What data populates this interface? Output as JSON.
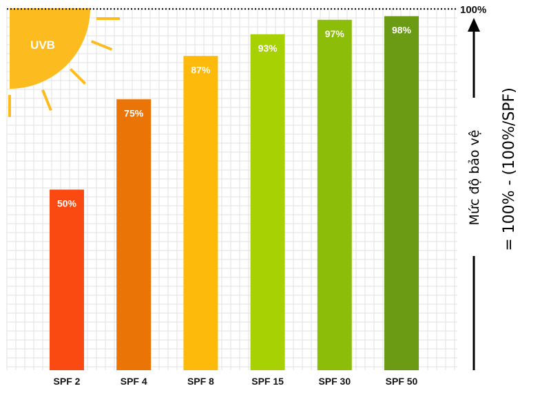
{
  "chart_data": {
    "type": "bar",
    "categories": [
      "SPF 2",
      "SPF 4",
      "SPF 8",
      "SPF 15",
      "SPF 30",
      "SPF 50"
    ],
    "values": [
      50,
      75,
      87,
      93,
      97,
      98
    ],
    "value_labels": [
      "50%",
      "75%",
      "87%",
      "93%",
      "97%",
      "98%"
    ],
    "bar_colors": [
      "#fb4a11",
      "#ea7506",
      "#fdba0b",
      "#a8d104",
      "#8cbd08",
      "#6b9b15"
    ],
    "ylim": [
      0,
      100
    ],
    "max_label": "100%",
    "ylabel_line1": "Mức độ bảo vệ",
    "ylabel_line2": "= 100% - (100%/SPF)",
    "sun_label": "UVB",
    "sun_color": "#fcbb1f",
    "grid": true,
    "grid_color": "#e2e2e2",
    "title": ""
  }
}
